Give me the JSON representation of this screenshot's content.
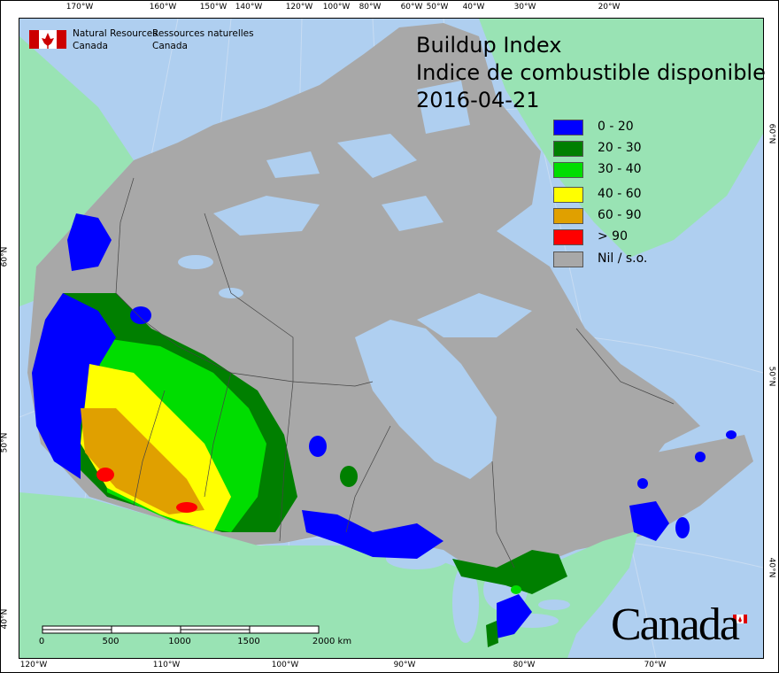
{
  "title": {
    "line1": "Buildup Index",
    "line2": "Indice de combustible disponible",
    "date": "2016-04-21"
  },
  "logo": {
    "en_line1": "Natural Resources",
    "en_line2": "Canada",
    "fr_line1": "Ressources naturelles",
    "fr_line2": "Canada",
    "wordmark": "Canada"
  },
  "legend": [
    {
      "label": "0 - 20",
      "color": "#0000ff"
    },
    {
      "label": "20 - 30",
      "color": "#007f00"
    },
    {
      "label": "30 - 40",
      "color": "#00dd00"
    },
    {
      "label": "40 - 60",
      "color": "#ffff00"
    },
    {
      "label": "60 - 90",
      "color": "#e0a000"
    },
    {
      "label": "> 90",
      "color": "#ff0000"
    },
    {
      "label": "Nil / s.o.",
      "color": "#a8a8a8"
    }
  ],
  "axes": {
    "top": [
      "170°W",
      "160°W",
      "150°W",
      "140°W",
      "120°W",
      "100°W",
      "80°W",
      "60°W",
      "50°W",
      "40°W",
      "30°W",
      "20°W"
    ],
    "bottom": [
      "120°W",
      "110°W",
      "100°W",
      "90°W",
      "80°W",
      "70°W"
    ],
    "left": [
      "60°N",
      "50°N",
      "40°N"
    ],
    "right": [
      "60°N",
      "50°N",
      "40°N"
    ]
  },
  "scale_bar": {
    "labels": [
      "0",
      "500",
      "1000",
      "1500",
      "2000 km"
    ]
  },
  "colors": {
    "water": "#afcff0",
    "foreign_land": "#99e3b4",
    "canada_nodata": "#a8a8a8"
  }
}
